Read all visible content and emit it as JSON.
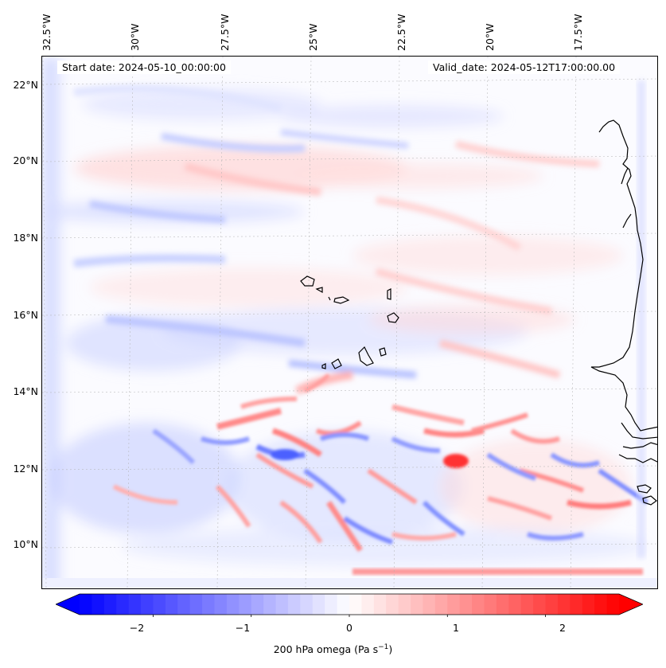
{
  "map": {
    "start_date": "Start date: 2024-05-10_00:00:00",
    "valid_date": "Valid_date: 2024-05-12T17:00:00.00",
    "longitude_labels": [
      "32.5°W",
      "30°W",
      "27.5°W",
      "25°W",
      "22.5°W",
      "20°W",
      "17.5°W"
    ],
    "latitude_labels": [
      "22°N",
      "20°N",
      "18°N",
      "16°N",
      "14°N",
      "12°N",
      "10°N"
    ]
  },
  "colorbar": {
    "label": "200 hPa omega (Pa s",
    "label_superscript": "−1",
    "label_suffix": ")",
    "ticks": [
      "−2",
      "−1",
      "0",
      "1",
      "2"
    ],
    "min_value": -2.75,
    "max_value": 2.75,
    "tick_values": [
      -2,
      -1,
      0,
      1,
      2
    ],
    "colors": {
      "negative": "#0000ff",
      "zero": "#ffffff",
      "positive": "#ff0000"
    }
  },
  "colors": {
    "coastline": "#000000",
    "gridline": "#b0b0b0"
  }
}
